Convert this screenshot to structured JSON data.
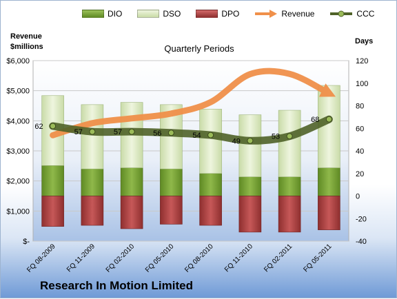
{
  "chart_data": {
    "type": "bar",
    "title": "Quarterly Periods",
    "footer": "Research In Motion Limited",
    "categories": [
      "FQ 08-2009",
      "FQ 11-2009",
      "FQ 02-2010",
      "FQ 05-2010",
      "FQ 08-2010",
      "FQ 11-2010",
      "FQ 02-2011",
      "FQ 05-2011"
    ],
    "left_axis": {
      "label_line1": "Revenue",
      "label_line2": "$millions",
      "ylim": [
        0,
        6000
      ],
      "ticks": [
        0,
        1000,
        2000,
        3000,
        4000,
        5000,
        6000
      ],
      "tick_labels": [
        "$-",
        "$1,000",
        "$2,000",
        "$3,000",
        "$4,000",
        "$5,000",
        "$6,000"
      ]
    },
    "right_axis": {
      "label": "Days",
      "ylim": [
        -40,
        120
      ],
      "ticks": [
        -40,
        -20,
        0,
        20,
        40,
        60,
        80,
        100,
        120
      ],
      "tick_labels": [
        "-40",
        "-20",
        "0",
        "20",
        "40",
        "60",
        "80",
        "100",
        "120"
      ]
    },
    "series": [
      {
        "name": "DIO",
        "kind": "stacked-bar",
        "axis": "days",
        "color": "#77a033",
        "values": [
          27,
          24,
          25,
          24,
          20,
          17,
          17,
          25
        ]
      },
      {
        "name": "DSO",
        "kind": "stacked-bar",
        "axis": "days",
        "color": "#d7e4bd",
        "values": [
          62,
          57,
          58,
          57,
          57,
          55,
          59,
          73
        ]
      },
      {
        "name": "DPO",
        "kind": "negative-bar",
        "axis": "days",
        "color": "#b84b4b",
        "values": [
          -27,
          -26,
          -29,
          -25,
          -26,
          -32,
          -32,
          -30
        ]
      },
      {
        "name": "Revenue",
        "kind": "line",
        "axis": "revenue",
        "color": "#f0904a",
        "values": [
          3520,
          3920,
          4080,
          4240,
          4620,
          5550,
          5560,
          4910
        ]
      },
      {
        "name": "CCC",
        "kind": "line",
        "axis": "days",
        "color": "#4f6228",
        "values": [
          62,
          57,
          57,
          56,
          54,
          49,
          53,
          68
        ]
      }
    ],
    "data_labels": [
      "62",
      "57",
      "57",
      "56",
      "54",
      "49",
      "53",
      "68"
    ],
    "grid": true,
    "legend": "top"
  }
}
